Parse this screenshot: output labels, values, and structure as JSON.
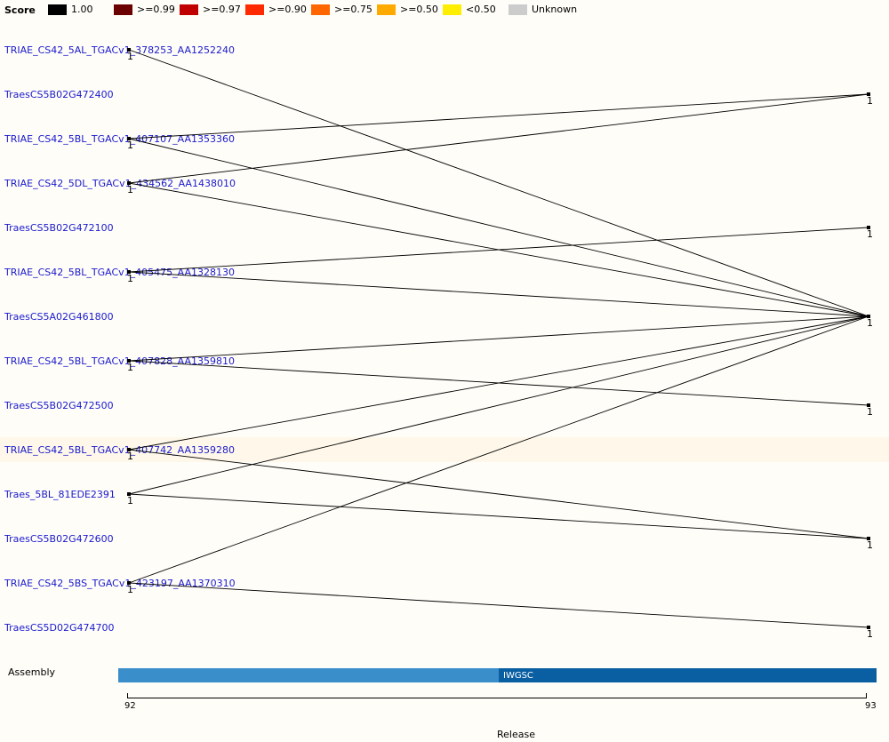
{
  "legend": {
    "title": "Score",
    "items": [
      {
        "label": "1.00",
        "color": "#000000"
      },
      {
        "label": ">=0.99",
        "color": "#6b0000"
      },
      {
        "label": ">=0.97",
        "color": "#c00000"
      },
      {
        "label": ">=0.90",
        "color": "#ff2a00"
      },
      {
        "label": ">=0.75",
        "color": "#ff6600"
      },
      {
        "label": ">=0.50",
        "color": "#ffaa00"
      },
      {
        "label": "<0.50",
        "color": "#ffee00"
      },
      {
        "label": "Unknown",
        "color": "#cccccc"
      }
    ]
  },
  "genes": [
    "TRIAE_CS42_5AL_TGACv1_378253_AA1252240",
    "TraesCS5B02G472400",
    "TRIAE_CS42_5BL_TGACv1_407107_AA1353360",
    "TRIAE_CS42_5DL_TGACv1_434562_AA1438010",
    "TraesCS5B02G472100",
    "TRIAE_CS42_5BL_TGACv1_405475_AA1328130",
    "TraesCS5A02G461800",
    "TRIAE_CS42_5BL_TGACv1_407828_AA1359810",
    "TraesCS5B02G472500",
    "TRIAE_CS42_5BL_TGACv1_407742_AA1359280",
    "Traes_5BL_81EDE2391",
    "TraesCS5B02G472600",
    "TRIAE_CS42_5BS_TGACv1_423197_AA1370310",
    "TraesCS5D02G474700"
  ],
  "left_nodes": [
    {
      "row": 0,
      "count": "1"
    },
    {
      "row": 2,
      "count": "1"
    },
    {
      "row": 3,
      "count": "1"
    },
    {
      "row": 5,
      "count": "1"
    },
    {
      "row": 7,
      "count": "1"
    },
    {
      "row": 9,
      "count": "1"
    },
    {
      "row": 10,
      "count": "1"
    },
    {
      "row": 12,
      "count": "1"
    }
  ],
  "right_nodes": [
    {
      "row": 1,
      "count": "1"
    },
    {
      "row": 4,
      "count": "1"
    },
    {
      "row": 6,
      "count": "1"
    },
    {
      "row": 8,
      "count": "1"
    },
    {
      "row": 11,
      "count": "1"
    },
    {
      "row": 13,
      "count": "1"
    }
  ],
  "links": [
    [
      0,
      6
    ],
    [
      2,
      1
    ],
    [
      2,
      6
    ],
    [
      3,
      1
    ],
    [
      3,
      6
    ],
    [
      5,
      4
    ],
    [
      5,
      6
    ],
    [
      7,
      6
    ],
    [
      7,
      8
    ],
    [
      9,
      6
    ],
    [
      9,
      11
    ],
    [
      10,
      6
    ],
    [
      10,
      11
    ],
    [
      12,
      6
    ],
    [
      12,
      13
    ]
  ],
  "highlight_row": 9,
  "assembly": {
    "label": "Assembly",
    "segments": [
      {
        "name": "",
        "color": "#3a8fcb"
      },
      {
        "name": "IWGSC",
        "color": "#0a5fa3"
      }
    ]
  },
  "release": {
    "title": "Release",
    "ticks": [
      "92",
      "93"
    ]
  }
}
